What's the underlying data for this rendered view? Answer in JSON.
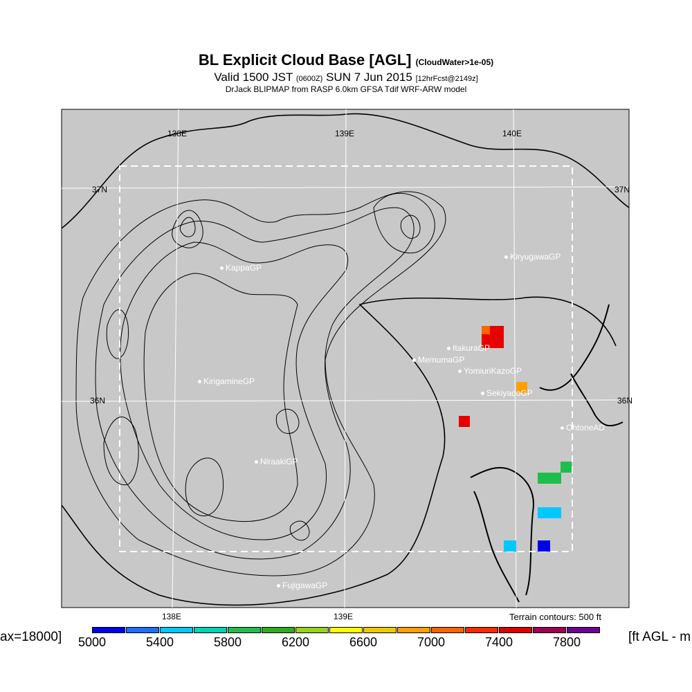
{
  "title": {
    "main": "BL Explicit Cloud Base [AGL]",
    "main_suffix": "(CloudWater>1e-05)",
    "valid_prefix": "Valid 1500 JST",
    "valid_zone": "(0600Z)",
    "valid_date": "SUN 7 Jun 2015",
    "valid_fcst": "[12hrFcst@2149z]",
    "subtitle": "DrJack BLIPMAP from RASP 6.0km GFSA Tdif WRF-ARW model"
  },
  "grid_labels": {
    "lon_138_top": "138E",
    "lon_139_top": "139E",
    "lon_140_top": "140E",
    "lat_37_left": "37N",
    "lat_37_right": "37N",
    "lat_36_left": "36N",
    "lat_36_right": "36N",
    "lon_138_bottom": "138E",
    "lon_139_bottom": "139E"
  },
  "sites": [
    {
      "name": "KiryugawaGP"
    },
    {
      "name": "KappaGP"
    },
    {
      "name": "ItakuraGP"
    },
    {
      "name": "MemumaGP"
    },
    {
      "name": "YomiuriKazoGP"
    },
    {
      "name": "SekiyadoGP"
    },
    {
      "name": "KirigamineGP"
    },
    {
      "name": "OhtoneAD"
    },
    {
      "name": "NiraakiGP"
    },
    {
      "name": "FujigawaGP"
    }
  ],
  "terrain_note": "Terrain contours: 500 ft",
  "max_label": "ax=18000]",
  "unit_label": "[ft AGL - m",
  "colorbar": {
    "colors": [
      "#0000ee",
      "#1e6eff",
      "#00c8ff",
      "#00d2b4",
      "#1ebe4b",
      "#32aa1e",
      "#96d21e",
      "#ffff00",
      "#f0c800",
      "#ffa000",
      "#ff6400",
      "#ff2800",
      "#dc0000",
      "#a00050",
      "#6e0096"
    ],
    "ticks": [
      "5000",
      "5400",
      "5800",
      "6200",
      "6600",
      "7000",
      "7400",
      "7800"
    ]
  },
  "map_colors": {
    "background": "#c8c8c8",
    "contour": "#000000",
    "grid": "#ffffff",
    "dashed_box": "#ffffff"
  }
}
